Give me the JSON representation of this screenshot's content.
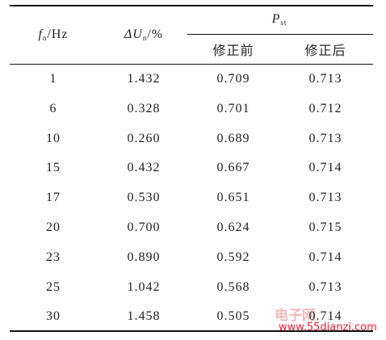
{
  "table": {
    "header": {
      "col1": {
        "symbol": "f",
        "subscript": "n",
        "unit": "/Hz"
      },
      "col2": {
        "symbol": "ΔU",
        "subscript": "n",
        "unit": "/%"
      },
      "group": {
        "symbol": "P",
        "subscript": "st"
      },
      "sub": [
        "修正前",
        "修正后"
      ]
    },
    "rows": [
      [
        "1",
        "1.432",
        "0.709",
        "0.713"
      ],
      [
        "6",
        "0.328",
        "0.701",
        "0.712"
      ],
      [
        "10",
        "0.260",
        "0.689",
        "0.713"
      ],
      [
        "15",
        "0.432",
        "0.667",
        "0.714"
      ],
      [
        "17",
        "0.530",
        "0.651",
        "0.713"
      ],
      [
        "20",
        "0.700",
        "0.624",
        "0.715"
      ],
      [
        "23",
        "0.890",
        "0.592",
        "0.714"
      ],
      [
        "25",
        "1.042",
        "0.568",
        "0.713"
      ],
      [
        "30",
        "1.458",
        "0.505",
        "0.714"
      ]
    ]
  },
  "watermark": {
    "brand": "电子网",
    "url": "www.55dianzi.com"
  }
}
